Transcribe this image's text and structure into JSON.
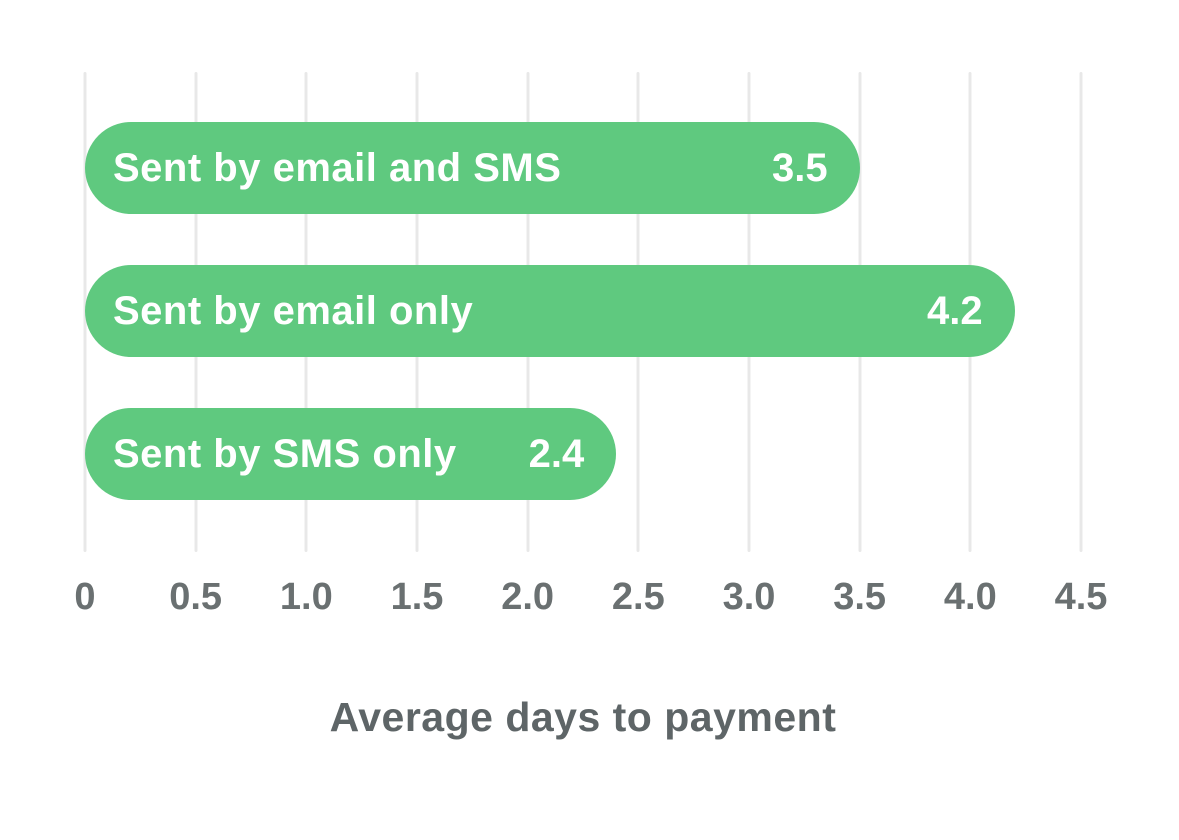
{
  "chart_data": {
    "type": "bar",
    "orientation": "horizontal",
    "title": "",
    "categories": [
      "Sent by email and SMS",
      "Sent by email only",
      "Sent by SMS only"
    ],
    "values": [
      3.5,
      4.2,
      2.4
    ],
    "value_labels": [
      "3.5",
      "4.2",
      "2.4"
    ],
    "xlabel": "Average days to payment",
    "ylabel": "",
    "xlim": [
      0,
      4.5
    ],
    "xticks": [
      0,
      0.5,
      1.0,
      1.5,
      2.0,
      2.5,
      3.0,
      3.5,
      4.0,
      4.5
    ],
    "xtick_labels": [
      "0",
      "0.5",
      "1.0",
      "1.5",
      "2.0",
      "2.5",
      "3.0",
      "3.5",
      "4.0",
      "4.5"
    ],
    "grid": "vertical",
    "legend": "none",
    "colors": {
      "bar_fill": "#5FC97F",
      "bar_text": "#FFFFFF",
      "gridline": "#E8E8E8",
      "tick_text": "#6A7071",
      "axis_label_text": "#5E6567",
      "background": "#FFFFFF"
    }
  }
}
